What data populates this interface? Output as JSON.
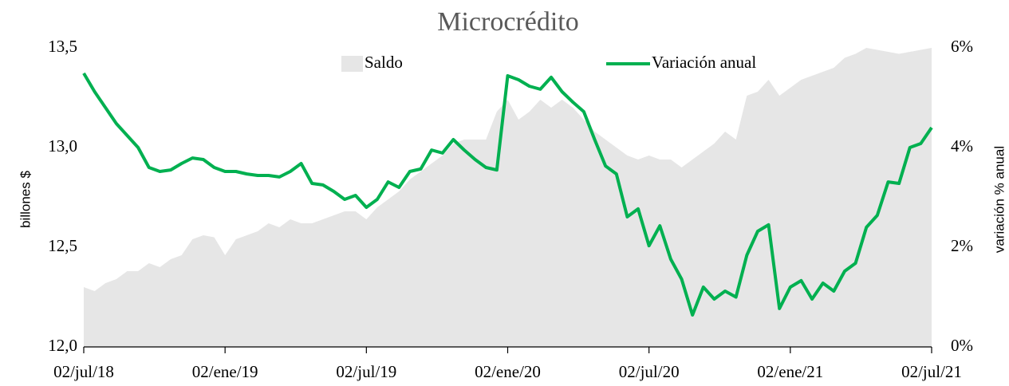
{
  "chart_data": {
    "type": "combo",
    "title": "Microcrédito",
    "y_label": "billones $",
    "y2_label": "variación % anual",
    "categories": [
      "02/jul/18",
      null,
      null,
      null,
      null,
      null,
      null,
      null,
      null,
      null,
      null,
      null,
      null,
      "02/ene/19",
      null,
      null,
      null,
      null,
      null,
      null,
      null,
      null,
      null,
      null,
      null,
      null,
      "02/jul/19",
      null,
      null,
      null,
      null,
      null,
      null,
      null,
      null,
      null,
      null,
      null,
      null,
      "02/ene/20",
      null,
      null,
      null,
      null,
      null,
      null,
      null,
      null,
      null,
      null,
      null,
      null,
      "02/jul/20",
      null,
      null,
      null,
      null,
      null,
      null,
      null,
      null,
      null,
      null,
      null,
      null,
      "02/ene/21",
      null,
      null,
      null,
      null,
      null,
      null,
      null,
      null,
      null,
      null,
      null,
      null,
      "02/jul/21"
    ],
    "series": [
      {
        "name": "Saldo",
        "type": "area",
        "color": "#e6e6e6",
        "values": [
          12.3,
          12.28,
          12.32,
          12.34,
          12.38,
          12.38,
          12.42,
          12.4,
          12.44,
          12.46,
          12.54,
          12.56,
          12.55,
          12.46,
          12.54,
          12.56,
          12.58,
          12.62,
          12.6,
          12.64,
          12.62,
          12.62,
          12.64,
          12.66,
          12.68,
          12.68,
          12.64,
          12.7,
          12.74,
          12.78,
          12.84,
          12.88,
          12.92,
          12.96,
          13.02,
          13.04,
          13.04,
          13.04,
          13.18,
          13.24,
          13.14,
          13.18,
          13.24,
          13.2,
          13.24,
          13.2,
          13.14,
          13.08,
          13.04,
          13.0,
          12.96,
          12.94,
          12.96,
          12.94,
          12.94,
          12.9,
          12.94,
          12.98,
          13.02,
          13.08,
          13.04,
          13.26,
          13.28,
          13.34,
          13.26,
          13.3,
          13.34,
          13.36,
          13.38,
          13.4,
          13.45,
          13.47,
          13.5,
          13.49,
          13.48,
          13.47,
          13.48,
          13.49,
          13.5
        ]
      },
      {
        "name": "Variación anual",
        "type": "line",
        "axis": "y2",
        "color": "#00b050",
        "values": [
          5.49,
          5.12,
          4.8,
          4.48,
          4.24,
          4.0,
          3.6,
          3.52,
          3.55,
          3.68,
          3.79,
          3.76,
          3.6,
          3.52,
          3.52,
          3.47,
          3.44,
          3.44,
          3.41,
          3.52,
          3.68,
          3.28,
          3.25,
          3.12,
          2.96,
          3.04,
          2.8,
          2.96,
          3.31,
          3.2,
          3.52,
          3.57,
          3.95,
          3.89,
          4.16,
          3.95,
          3.76,
          3.6,
          3.55,
          5.44,
          5.36,
          5.23,
          5.17,
          5.41,
          5.12,
          4.91,
          4.72,
          4.16,
          3.63,
          3.47,
          2.61,
          2.77,
          2.03,
          2.43,
          1.76,
          1.36,
          0.64,
          1.2,
          0.96,
          1.12,
          1.0,
          1.84,
          2.32,
          2.45,
          0.77,
          1.2,
          1.33,
          0.96,
          1.28,
          1.12,
          1.52,
          1.68,
          2.4,
          2.64,
          3.31,
          3.28,
          4.0,
          4.08,
          4.4
        ]
      }
    ],
    "ylim": [
      12.0,
      13.5
    ],
    "yticks": [
      {
        "value": 12.0,
        "label": "12,0"
      },
      {
        "value": 12.5,
        "label": "12,5"
      },
      {
        "value": 13.0,
        "label": "13,0"
      },
      {
        "value": 13.5,
        "label": "13,5"
      }
    ],
    "y2lim": [
      0,
      6
    ],
    "y2ticks": [
      {
        "value": 0,
        "label": "0%"
      },
      {
        "value": 2,
        "label": "2%"
      },
      {
        "value": 4,
        "label": "4%"
      },
      {
        "value": 6,
        "label": "6%"
      }
    ],
    "grid": false
  }
}
